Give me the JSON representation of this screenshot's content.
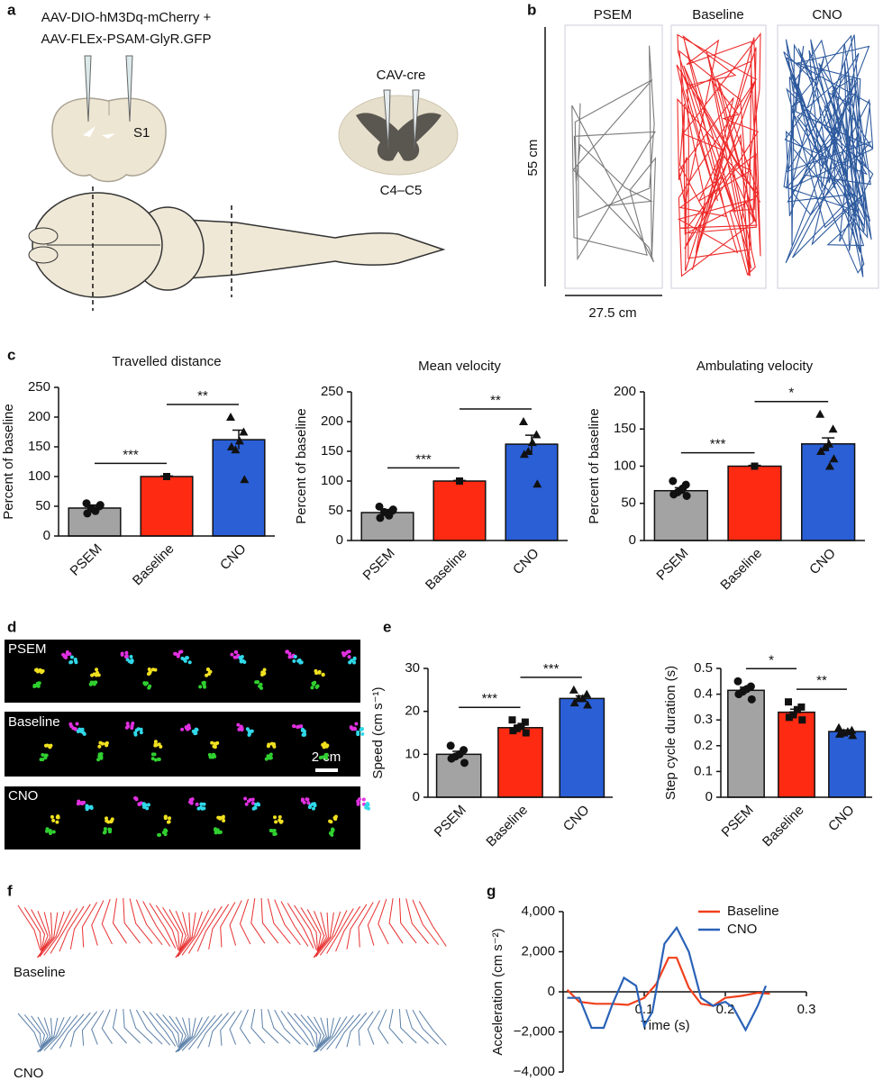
{
  "figure": {
    "a": {
      "letter": "a",
      "virus_1": "AAV-DIO-hM3Dq-mCherry +",
      "virus_2": "AAV-FLEx-PSAM-GlyR.GFP",
      "region": "S1",
      "spinal_virus": "CAV-cre",
      "segment": "C4–C5"
    },
    "b": {
      "letter": "b",
      "conditions": [
        "PSEM",
        "Baseline",
        "CNO"
      ],
      "height": "55 cm",
      "width": "27.5 cm"
    },
    "c": {
      "letter": "c"
    },
    "d": {
      "letter": "d",
      "conditions": [
        "PSEM",
        "Baseline",
        "CNO"
      ],
      "scale": "2 cm"
    },
    "e": {
      "letter": "e"
    },
    "f": {
      "letter": "f",
      "conditions": [
        "Baseline",
        "CNO"
      ]
    },
    "g": {
      "letter": "g"
    }
  },
  "chart_data": [
    {
      "type": "bar",
      "title": "Travelled distance",
      "ylabel": "Percent of baseline",
      "categories": [
        "PSEM",
        "Baseline",
        "CNO"
      ],
      "values": [
        47,
        100,
        162
      ],
      "errors": [
        5,
        1,
        16
      ],
      "colors": [
        "#a3a3a3",
        "#ff2a12",
        "#2a5fd6"
      ],
      "points": [
        [
          55,
          50,
          42,
          46,
          38,
          52
        ],
        [
          100
        ],
        [
          200,
          175,
          160,
          145,
          150,
          95
        ]
      ],
      "significance": [
        {
          "pair": [
            "PSEM",
            "Baseline"
          ],
          "label": "***"
        },
        {
          "pair": [
            "Baseline",
            "CNO"
          ],
          "label": "**"
        }
      ],
      "ylim": [
        0,
        250
      ],
      "yticks": [
        0,
        50,
        100,
        150,
        200,
        250
      ]
    },
    {
      "type": "bar",
      "title": "Mean velocity",
      "ylabel": "Percent of baseline",
      "categories": [
        "PSEM",
        "Baseline",
        "CNO"
      ],
      "values": [
        47,
        100,
        162
      ],
      "errors": [
        5,
        1,
        15
      ],
      "colors": [
        "#a3a3a3",
        "#ff2a12",
        "#2a5fd6"
      ],
      "points": [
        [
          57,
          50,
          44,
          48,
          38,
          52,
          42
        ],
        [
          100
        ],
        [
          200,
          178,
          165,
          150,
          145,
          95
        ]
      ],
      "significance": [
        {
          "pair": [
            "PSEM",
            "Baseline"
          ],
          "label": "***"
        },
        {
          "pair": [
            "Baseline",
            "CNO"
          ],
          "label": "**"
        }
      ],
      "ylim": [
        0,
        250
      ],
      "yticks": [
        0,
        50,
        100,
        150,
        200,
        250
      ]
    },
    {
      "type": "bar",
      "title": "Ambulating velocity",
      "ylabel": "Percent of baseline",
      "categories": [
        "PSEM",
        "Baseline",
        "CNO"
      ],
      "values": [
        67,
        100,
        130
      ],
      "errors": [
        4,
        1,
        8
      ],
      "colors": [
        "#a3a3a3",
        "#ff2a12",
        "#2a5fd6"
      ],
      "points": [
        [
          80,
          75,
          68,
          65,
          62,
          60,
          70
        ],
        [
          100
        ],
        [
          170,
          150,
          130,
          125,
          120,
          110,
          100
        ]
      ],
      "significance": [
        {
          "pair": [
            "PSEM",
            "Baseline"
          ],
          "label": "***"
        },
        {
          "pair": [
            "Baseline",
            "CNO"
          ],
          "label": "*"
        }
      ],
      "ylim": [
        0,
        200
      ],
      "yticks": [
        0,
        50,
        100,
        150,
        200
      ]
    },
    {
      "type": "bar",
      "ylabel": "Speed (cm s⁻¹)",
      "categories": [
        "PSEM",
        "Baseline",
        "CNO"
      ],
      "values": [
        10,
        16.2,
        23
      ],
      "errors": [
        0.7,
        0.6,
        0.6
      ],
      "colors": [
        "#a3a3a3",
        "#ff2a12",
        "#2a5fd6"
      ],
      "points": [
        [
          12,
          11,
          10,
          9.5,
          9,
          8
        ],
        [
          18,
          17.5,
          16.5,
          16,
          15.5,
          15
        ],
        [
          25,
          24,
          23,
          23,
          22,
          21.5
        ]
      ],
      "significance": [
        {
          "pair": [
            "PSEM",
            "Baseline"
          ],
          "label": "***"
        },
        {
          "pair": [
            "Baseline",
            "CNO"
          ],
          "label": "***"
        }
      ],
      "ylim": [
        0,
        30
      ],
      "yticks": [
        0,
        10,
        20,
        30
      ]
    },
    {
      "type": "bar",
      "ylabel": "Step cycle duration (s)",
      "categories": [
        "PSEM",
        "Baseline",
        "CNO"
      ],
      "values": [
        0.415,
        0.33,
        0.255
      ],
      "errors": [
        0.012,
        0.012,
        0.006
      ],
      "colors": [
        "#a3a3a3",
        "#ff2a12",
        "#2a5fd6"
      ],
      "points": [
        [
          0.45,
          0.43,
          0.42,
          0.41,
          0.4,
          0.38
        ],
        [
          0.37,
          0.35,
          0.34,
          0.32,
          0.31,
          0.3
        ],
        [
          0.27,
          0.26,
          0.255,
          0.25,
          0.245,
          0.24
        ]
      ],
      "significance": [
        {
          "pair": [
            "PSEM",
            "Baseline"
          ],
          "label": "*"
        },
        {
          "pair": [
            "Baseline",
            "CNO"
          ],
          "label": "**"
        }
      ],
      "ylim": [
        0,
        0.5
      ],
      "yticks": [
        0,
        0.1,
        0.2,
        0.3,
        0.4,
        0.5
      ]
    },
    {
      "type": "line",
      "xlabel": "Time (s)",
      "ylabel": "Acceleration (cm s⁻²)",
      "legend": "upper right",
      "series": [
        {
          "name": "Baseline",
          "color": "#f0401c",
          "x": [
            0.005,
            0.02,
            0.04,
            0.06,
            0.08,
            0.1,
            0.115,
            0.13,
            0.14,
            0.155,
            0.17,
            0.185,
            0.2,
            0.22,
            0.24,
            0.255
          ],
          "values": [
            100,
            -500,
            -600,
            -600,
            -650,
            -300,
            400,
            1700,
            1700,
            200,
            -600,
            -700,
            -300,
            -200,
            -50,
            -100
          ]
        },
        {
          "name": "CNO",
          "color": "#2a62b8",
          "x": [
            0.005,
            0.02,
            0.035,
            0.05,
            0.06,
            0.075,
            0.09,
            0.1,
            0.11,
            0.125,
            0.14,
            0.155,
            0.17,
            0.185,
            0.2,
            0.21,
            0.225,
            0.24,
            0.25
          ],
          "values": [
            -300,
            -300,
            -1800,
            -1800,
            -700,
            700,
            300,
            -1700,
            -1000,
            2400,
            3200,
            2000,
            -300,
            -700,
            -500,
            -800,
            -1900,
            -700,
            300
          ]
        }
      ],
      "xlim": [
        0,
        0.3
      ],
      "xticks": [
        0.1,
        0.2,
        0.3
      ],
      "ylim": [
        -4000,
        4000
      ],
      "yticks": [
        {
          "value": 4000,
          "label": "4,000"
        },
        {
          "value": 2000,
          "label": "2,000"
        },
        0,
        {
          "value": -2000,
          "label": "−2,000"
        },
        {
          "value": -4000,
          "label": "−4,000"
        }
      ]
    }
  ]
}
